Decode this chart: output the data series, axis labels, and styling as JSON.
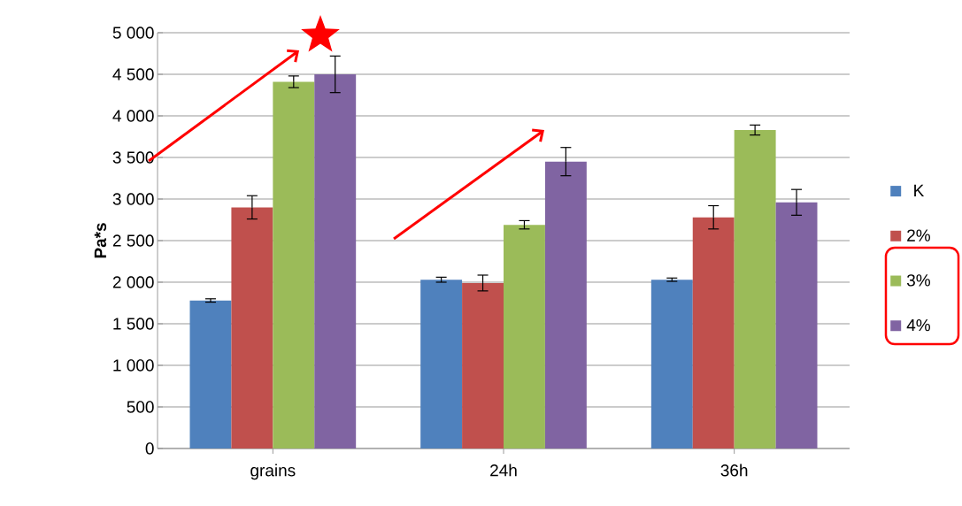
{
  "chart_data": {
    "type": "bar",
    "ylabel": "Pa*s",
    "categories": [
      "grains",
      "24h",
      "36h"
    ],
    "series": [
      {
        "name": "K",
        "color": "#4f81bd",
        "values": [
          1780,
          2030,
          2030
        ],
        "errors": [
          20,
          30,
          20
        ]
      },
      {
        "name": "2%",
        "color": "#c0504d",
        "values": [
          2900,
          1990,
          2780
        ],
        "errors": [
          140,
          95,
          140
        ]
      },
      {
        "name": "3%",
        "color": "#9bbb59",
        "values": [
          4410,
          2690,
          3830
        ],
        "errors": [
          70,
          50,
          60
        ]
      },
      {
        "name": "4%",
        "color": "#8064a2",
        "values": [
          4500,
          3450,
          2960
        ],
        "errors": [
          220,
          170,
          155
        ]
      }
    ],
    "ylim": [
      0,
      5000
    ],
    "yticks": [
      0,
      500,
      {
        "value": 1000,
        "label": "1 000"
      },
      {
        "value": 1500,
        "label": "1 500"
      },
      {
        "value": 2000,
        "label": "2 000"
      },
      {
        "value": 2500,
        "label": "2 500"
      },
      {
        "value": 3000,
        "label": "3 000"
      },
      {
        "value": 3500,
        "label": "3 500"
      },
      {
        "value": 4000,
        "label": "4 000"
      },
      {
        "value": 4500,
        "label": "4 500"
      },
      {
        "value": 5000,
        "label": "5 000"
      }
    ],
    "grid": "y",
    "legend": "right"
  }
}
